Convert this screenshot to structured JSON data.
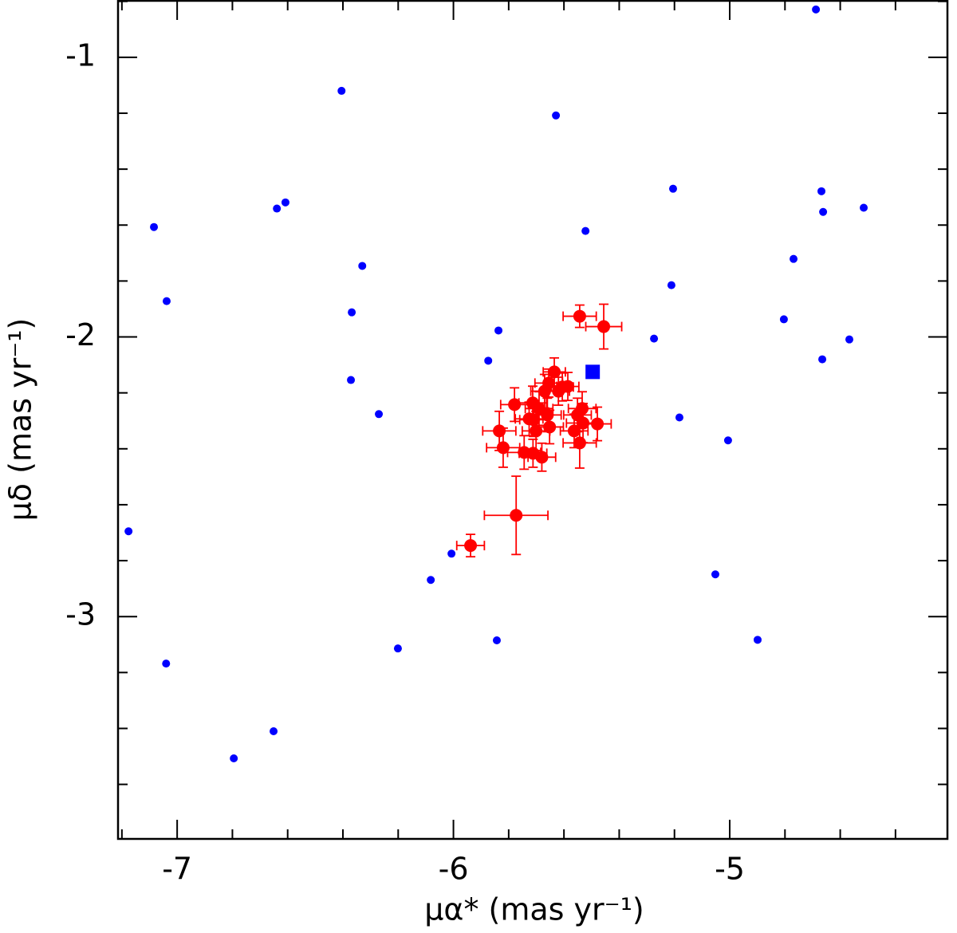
{
  "chart_data": {
    "type": "scatter",
    "x_label": "μα* (mas yr⁻¹)",
    "y_label": "μδ (mas yr⁻¹)",
    "xlim": [
      -7.214,
      -4.212
    ],
    "ylim": [
      -3.795,
      -0.798
    ],
    "xticks": [
      -7,
      -6,
      -5
    ],
    "yticks": [
      -3,
      -2,
      -1
    ],
    "xminor": [
      -7.2,
      -6.8,
      -6.6,
      -6.4,
      -6.2,
      -5.8,
      -5.6,
      -5.4,
      -5.2,
      -4.8,
      -4.6,
      -4.4
    ],
    "yminor": [
      -3.6,
      -3.4,
      -3.2,
      -2.8,
      -2.6,
      -2.4,
      -2.2,
      -1.8,
      -1.6,
      -1.4,
      -1.2,
      -0.8
    ],
    "series": [
      {
        "color": "#0000ff",
        "marker": "circle",
        "x": [
          -4.688,
          -6.405,
          -5.629,
          -6.639,
          -6.608,
          -7.084,
          -5.522,
          -5.205,
          -4.668,
          -4.662,
          -4.515,
          -4.769,
          -6.33,
          -5.211,
          -7.038,
          -6.368,
          -5.837,
          -4.804,
          -5.274,
          -4.567,
          -5.874,
          -4.665,
          -6.371,
          -6.27,
          -5.182,
          -5.006,
          -7.176,
          -6.007,
          -6.082,
          -5.052,
          -6.201,
          -5.843,
          -4.899,
          -7.04,
          -6.651,
          -6.795
        ],
        "y": [
          -0.829,
          -1.12,
          -1.208,
          -1.541,
          -1.519,
          -1.607,
          -1.621,
          -1.47,
          -1.479,
          -1.553,
          -1.538,
          -1.721,
          -1.746,
          -1.815,
          -1.872,
          -1.912,
          -1.977,
          -1.937,
          -2.006,
          -2.009,
          -2.085,
          -2.08,
          -2.154,
          -2.276,
          -2.288,
          -2.37,
          -2.695,
          -2.775,
          -2.869,
          -2.849,
          -3.114,
          -3.085,
          -3.083,
          -3.168,
          -3.41,
          -3.507
        ]
      },
      {
        "color": "#0000ff",
        "marker": "square",
        "x": [
          -5.496
        ],
        "y": [
          -2.125
        ]
      },
      {
        "color": "#ff0000",
        "marker": "circle",
        "x": [
          -5.543,
          -5.456,
          -5.779,
          -5.834,
          -5.82,
          -5.773,
          -5.938,
          -5.635,
          -5.655,
          -5.67,
          -5.606,
          -5.586,
          -5.713,
          -5.69,
          -5.726,
          -5.66,
          -5.701,
          -5.652,
          -5.71,
          -5.551,
          -5.534,
          -5.531,
          -5.563,
          -5.479,
          -5.543,
          -5.744,
          -5.712,
          -5.68,
          -5.62
        ],
        "y": [
          -1.926,
          -1.963,
          -2.242,
          -2.336,
          -2.396,
          -2.638,
          -2.746,
          -2.125,
          -2.165,
          -2.194,
          -2.179,
          -2.177,
          -2.236,
          -2.256,
          -2.293,
          -2.279,
          -2.336,
          -2.322,
          -2.296,
          -2.279,
          -2.256,
          -2.308,
          -2.336,
          -2.311,
          -2.379,
          -2.413,
          -2.416,
          -2.43,
          -2.194
        ],
        "xerr": [
          0.06,
          0.065,
          0.05,
          0.06,
          0.06,
          0.115,
          0.05,
          0.04,
          0.05,
          0.05,
          0.04,
          0.04,
          0.05,
          0.05,
          0.05,
          0.05,
          0.05,
          0.05,
          0.05,
          0.05,
          0.05,
          0.06,
          0.05,
          0.05,
          0.06,
          0.06,
          0.05,
          0.05,
          0.04
        ],
        "yerr": [
          0.04,
          0.08,
          0.06,
          0.07,
          0.07,
          0.14,
          0.04,
          0.05,
          0.05,
          0.06,
          0.05,
          0.05,
          0.06,
          0.06,
          0.06,
          0.06,
          0.07,
          0.06,
          0.06,
          0.06,
          0.06,
          0.07,
          0.06,
          0.06,
          0.09,
          0.06,
          0.05,
          0.05,
          0.05
        ]
      }
    ]
  }
}
